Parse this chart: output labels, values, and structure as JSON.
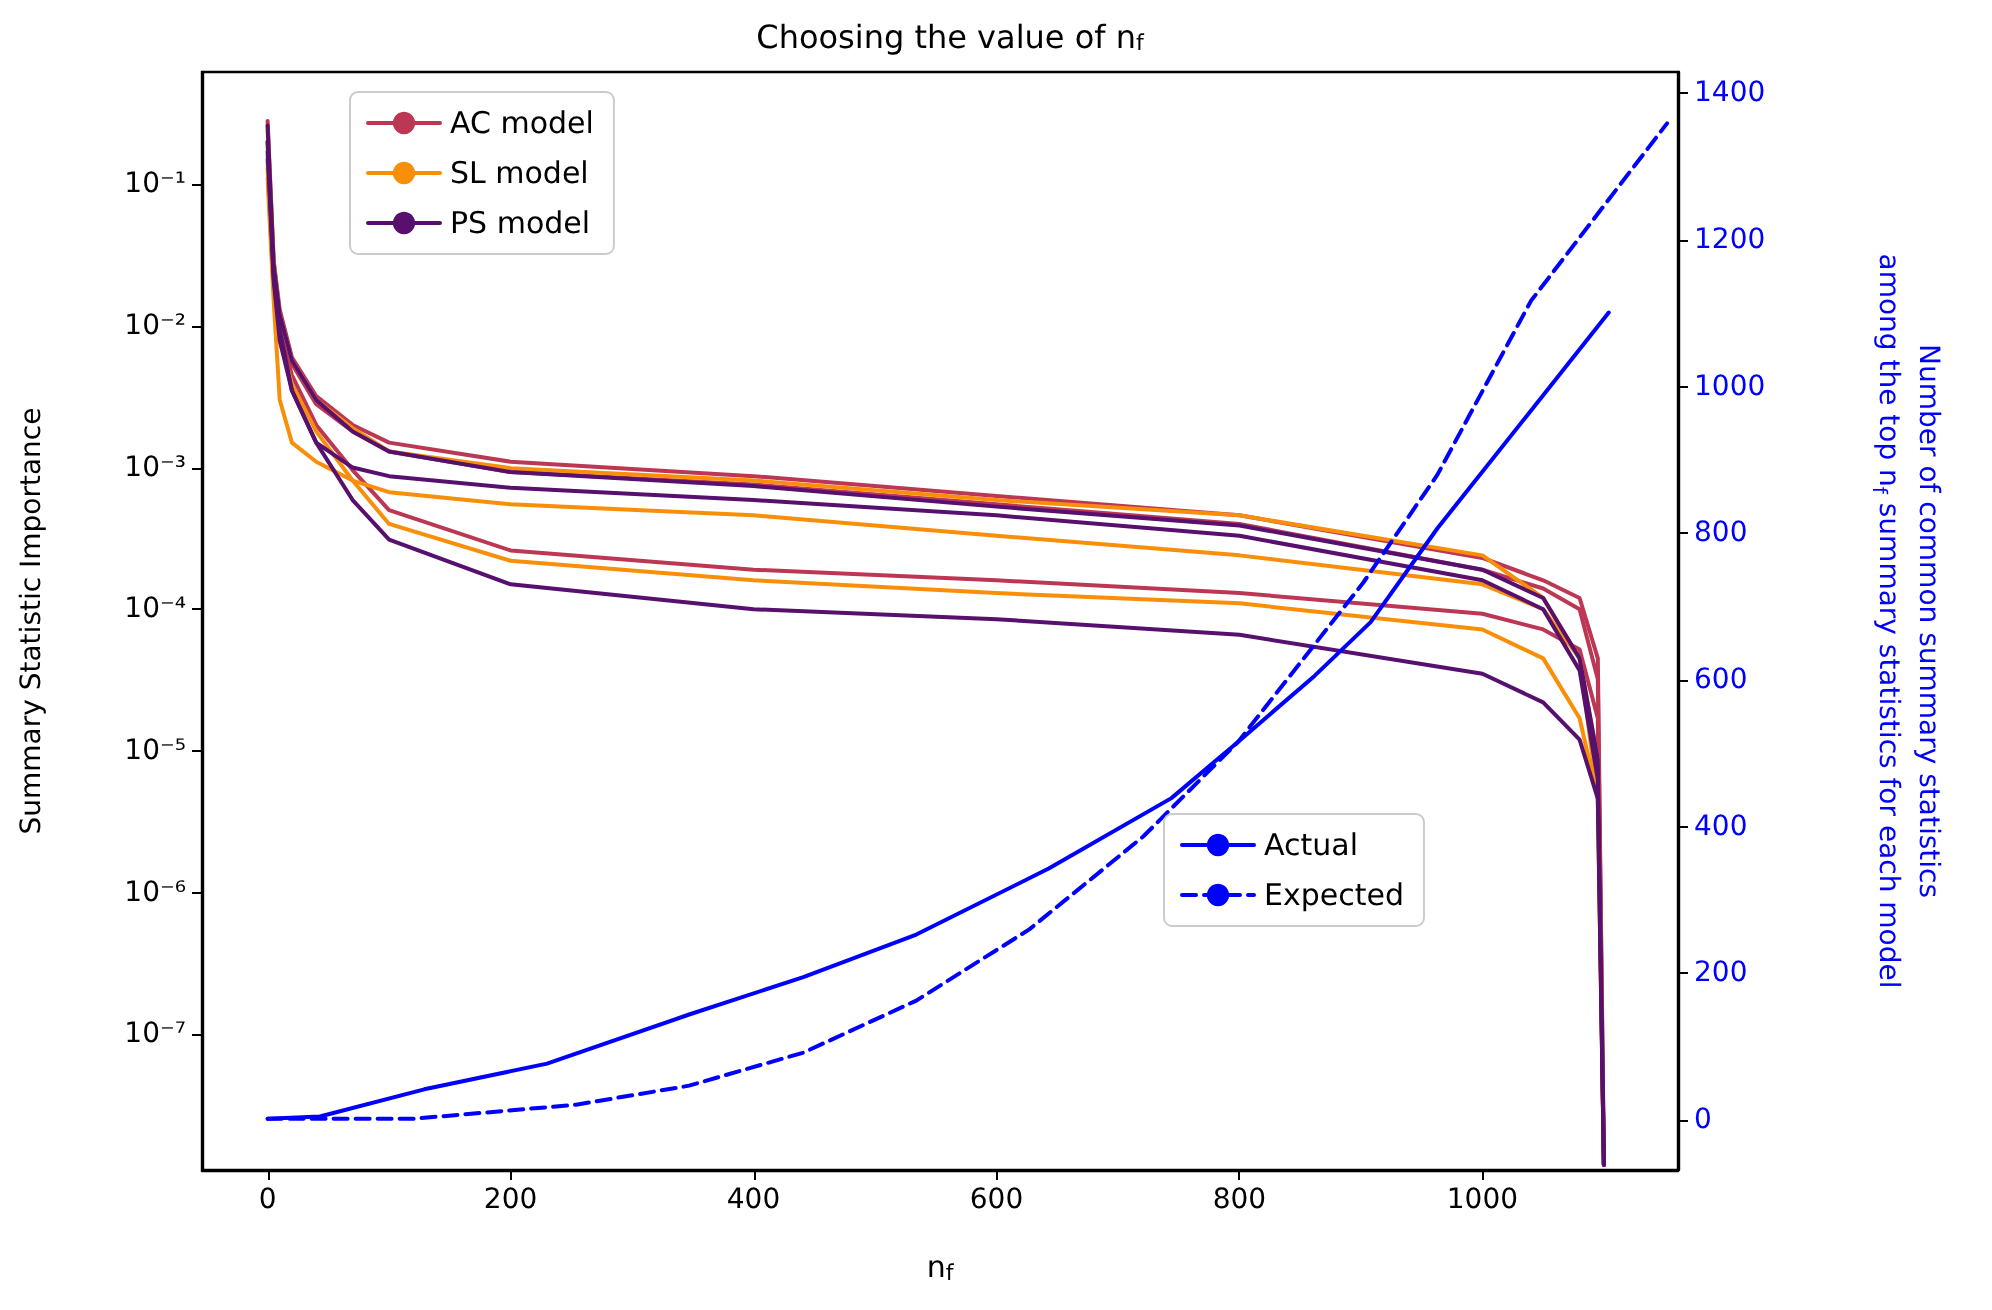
{
  "chart_data": {
    "type": "line",
    "title": "Choosing the value of n$_{f}$",
    "xlabel": "n$_{f}$",
    "ylabel": "Summary Statistic Importance",
    "y2label": "Number of common summary statistics\namong the top n$_{f}$ summary statistics for each model",
    "x": [
      0,
      5,
      10,
      20,
      40,
      70,
      100,
      200,
      400,
      600,
      800,
      1000,
      1050,
      1080,
      1095,
      1100
    ],
    "series": [
      {
        "name": "AC model",
        "color": "#bc3754",
        "values": [
          0.28,
          0.029,
          0.013,
          0.006,
          0.0032,
          0.002,
          0.0015,
          0.0011,
          0.00087,
          0.00063,
          0.00046,
          0.00023,
          0.00016,
          0.00012,
          4.5e-05,
          1.2e-08
        ]
      },
      {
        "color": "#bc3754",
        "values": [
          0.2,
          0.025,
          0.011,
          0.0054,
          0.0028,
          0.0018,
          0.0013,
          0.00093,
          0.00076,
          0.00055,
          0.0004,
          0.00019,
          0.00014,
          0.0001,
          3.2e-05,
          1.2e-08
        ]
      },
      {
        "color": "#bc3754",
        "values": [
          0.15,
          0.021,
          0.0093,
          0.0045,
          0.002,
          0.00096,
          0.0005,
          0.00026,
          0.00019,
          0.00016,
          0.00013,
          9.3e-05,
          7.2e-05,
          5.2e-05,
          1.7e-05,
          1.2e-08
        ]
      },
      {
        "name": "SL model",
        "color": "#f98e09",
        "values": [
          0.24,
          0.029,
          0.012,
          0.0057,
          0.003,
          0.0019,
          0.0013,
          0.00099,
          0.00081,
          0.00059,
          0.00046,
          0.00024,
          0.00012,
          4.5e-05,
          8.7e-06,
          1.2e-08
        ]
      },
      {
        "color": "#f98e09",
        "values": [
          0.11,
          0.015,
          0.003,
          0.0015,
          0.0011,
          0.00081,
          0.00067,
          0.00055,
          0.00046,
          0.00033,
          0.00024,
          0.00015,
          0.0001,
          4.5e-05,
          4.6e-06,
          1.2e-08
        ]
      },
      {
        "color": "#f98e09",
        "values": [
          0.13,
          0.018,
          0.0079,
          0.0039,
          0.0018,
          0.00081,
          0.0004,
          0.00022,
          0.00016,
          0.00013,
          0.00011,
          7.2e-05,
          4.5e-05,
          1.7e-05,
          4.6e-06,
          1.2e-08
        ]
      },
      {
        "name": "PS model",
        "color": "#57106e",
        "values": [
          0.26,
          0.027,
          0.012,
          0.0057,
          0.003,
          0.0018,
          0.0013,
          0.00093,
          0.00074,
          0.00053,
          0.00039,
          0.00019,
          0.00012,
          4.5e-05,
          8.7e-06,
          1.2e-08
        ]
      },
      {
        "color": "#57106e",
        "values": [
          0.17,
          0.022,
          0.0093,
          0.0035,
          0.0015,
          0.001,
          0.00087,
          0.00072,
          0.00059,
          0.00046,
          0.00033,
          0.00016,
          0.0001,
          3.7e-05,
          6.3e-06,
          1.2e-08
        ]
      },
      {
        "color": "#57106e",
        "values": [
          0.2,
          0.021,
          0.0079,
          0.0035,
          0.0015,
          0.00059,
          0.00031,
          0.00015,
          0.0001,
          8.5e-05,
          6.6e-05,
          3.5e-05,
          2.2e-05,
          1.2e-05,
          4.6e-06,
          1.2e-08
        ]
      },
      {
        "name": "Actual",
        "color": "#0000ff",
        "axis": "y2",
        "x": [
          0,
          43,
          129,
          230,
          347,
          441,
          534,
          643,
          744,
          799,
          862,
          908,
          963,
          1035,
          1104
        ],
        "values": [
          2,
          5,
          42,
          77,
          144,
          195,
          253,
          343,
          439,
          516,
          606,
          679,
          807,
          957,
          1101
        ]
      },
      {
        "name": "Expected",
        "color": "#0000ff",
        "axis": "y2",
        "line_style": "dashed",
        "x": [
          0,
          121,
          254,
          347,
          441,
          534,
          627,
          721,
          799,
          902,
          963,
          1040,
          1152
        ],
        "values": [
          2,
          2,
          21,
          47,
          92,
          163,
          260,
          387,
          516,
          733,
          880,
          1117,
          1359
        ]
      }
    ],
    "log": "y",
    "xlim": [
      -54,
      1161
    ],
    "xticks": [
      0,
      200,
      400,
      600,
      800,
      1000
    ],
    "ylim": [
      1.1e-08,
      0.62
    ],
    "yticks": [
      {
        "value": 1e-07,
        "label": "10⁻⁷"
      },
      {
        "value": 1e-06,
        "label": "10⁻⁶"
      },
      {
        "value": 1e-05,
        "label": "10⁻⁵"
      },
      {
        "value": 0.0001,
        "label": "10⁻⁴"
      },
      {
        "value": 0.001,
        "label": "10⁻³"
      },
      {
        "value": 0.01,
        "label": "10⁻²"
      },
      {
        "value": 0.1,
        "label": "10⁻¹"
      }
    ],
    "y2lim": [
      -68,
      1429
    ],
    "y2ticks": [
      0,
      200,
      400,
      600,
      800,
      1000,
      1200,
      1400
    ],
    "legend": "top left",
    "marker": "none",
    "grid": false
  }
}
